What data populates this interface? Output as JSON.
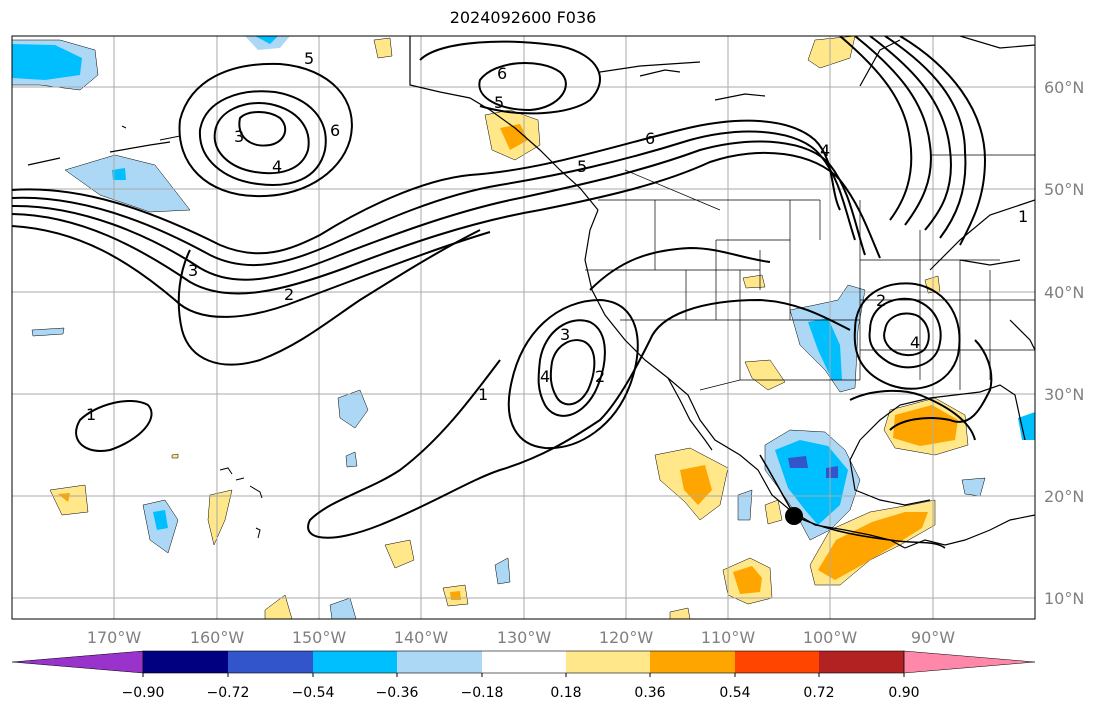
{
  "title": "2024092600 F036",
  "lat_labels": [
    "60°N",
    "50°N",
    "40°N",
    "30°N",
    "20°N",
    "10°N"
  ],
  "lon_labels": [
    "170°W",
    "160°W",
    "150°W",
    "140°W",
    "130°W",
    "120°W",
    "110°W",
    "100°W",
    "90°W"
  ],
  "colorbar": {
    "tick_labels": [
      "−0.90",
      "−0.72",
      "−0.54",
      "−0.36",
      "−0.18",
      "0.18",
      "0.36",
      "0.54",
      "0.72",
      "0.90"
    ],
    "colors": [
      "#9933cc",
      "#000080",
      "#3355cc",
      "#00bfff",
      "#add8f5",
      "#ffffff",
      "#ffe78a",
      "#ffa500",
      "#ff4500",
      "#b22222",
      "#ff88aa"
    ]
  },
  "contour_labels": [
    "5",
    "6",
    "6",
    "5",
    "3",
    "4",
    "6",
    "5",
    "3",
    "2",
    "3",
    "4",
    "2",
    "1",
    "1",
    "2",
    "4",
    "1",
    "4"
  ],
  "shading_colors": {
    "light_blue": "#add8f5",
    "blue": "#00bfff",
    "dark_blue": "#3355cc",
    "yellow": "#ffe78a",
    "orange": "#ffa500"
  },
  "marker": "storm-center"
}
